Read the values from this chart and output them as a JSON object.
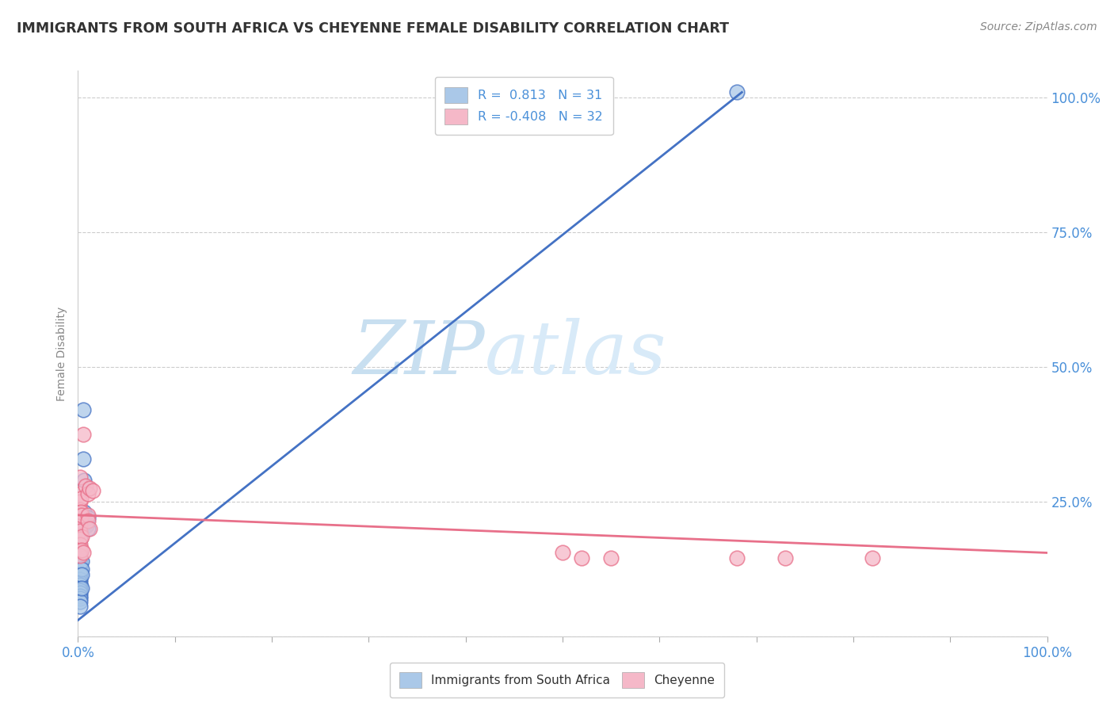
{
  "title": "IMMIGRANTS FROM SOUTH AFRICA VS CHEYENNE FEMALE DISABILITY CORRELATION CHART",
  "source_text": "Source: ZipAtlas.com",
  "ylabel": "Female Disability",
  "ylabel_right_ticks": [
    "100.0%",
    "75.0%",
    "50.0%",
    "25.0%"
  ],
  "ylabel_right_vals": [
    1.0,
    0.75,
    0.5,
    0.25
  ],
  "watermark_zip": "ZIP",
  "watermark_atlas": "atlas",
  "legend_label_blue": "Immigrants from South Africa",
  "legend_label_pink": "Cheyenne",
  "R_blue": 0.813,
  "N_blue": 31,
  "R_pink": -0.408,
  "N_pink": 32,
  "blue_color": "#aac8e8",
  "pink_color": "#f5b8c8",
  "blue_line_color": "#4472c4",
  "pink_line_color": "#e8708a",
  "blue_scatter": [
    [
      0.002,
      0.18
    ],
    [
      0.002,
      0.155
    ],
    [
      0.002,
      0.145
    ],
    [
      0.002,
      0.135
    ],
    [
      0.002,
      0.125
    ],
    [
      0.002,
      0.115
    ],
    [
      0.002,
      0.105
    ],
    [
      0.002,
      0.1
    ],
    [
      0.002,
      0.095
    ],
    [
      0.002,
      0.09
    ],
    [
      0.002,
      0.085
    ],
    [
      0.002,
      0.08
    ],
    [
      0.002,
      0.075
    ],
    [
      0.002,
      0.07
    ],
    [
      0.002,
      0.065
    ],
    [
      0.002,
      0.055
    ],
    [
      0.004,
      0.14
    ],
    [
      0.004,
      0.125
    ],
    [
      0.004,
      0.115
    ],
    [
      0.004,
      0.09
    ],
    [
      0.005,
      0.42
    ],
    [
      0.005,
      0.33
    ],
    [
      0.006,
      0.29
    ],
    [
      0.006,
      0.23
    ],
    [
      0.007,
      0.205
    ],
    [
      0.007,
      0.22
    ],
    [
      0.008,
      0.21
    ],
    [
      0.009,
      0.205
    ],
    [
      0.01,
      0.22
    ],
    [
      0.01,
      0.2
    ],
    [
      0.68,
      1.01
    ]
  ],
  "pink_scatter": [
    [
      0.002,
      0.295
    ],
    [
      0.002,
      0.265
    ],
    [
      0.002,
      0.25
    ],
    [
      0.002,
      0.235
    ],
    [
      0.002,
      0.225
    ],
    [
      0.002,
      0.215
    ],
    [
      0.002,
      0.205
    ],
    [
      0.002,
      0.195
    ],
    [
      0.002,
      0.18
    ],
    [
      0.002,
      0.17
    ],
    [
      0.002,
      0.16
    ],
    [
      0.002,
      0.15
    ],
    [
      0.003,
      0.255
    ],
    [
      0.003,
      0.23
    ],
    [
      0.004,
      0.225
    ],
    [
      0.004,
      0.185
    ],
    [
      0.004,
      0.16
    ],
    [
      0.005,
      0.155
    ],
    [
      0.005,
      0.375
    ],
    [
      0.008,
      0.28
    ],
    [
      0.01,
      0.265
    ],
    [
      0.012,
      0.275
    ],
    [
      0.01,
      0.225
    ],
    [
      0.015,
      0.27
    ],
    [
      0.01,
      0.215
    ],
    [
      0.012,
      0.2
    ],
    [
      0.5,
      0.155
    ],
    [
      0.52,
      0.145
    ],
    [
      0.55,
      0.145
    ],
    [
      0.68,
      0.145
    ],
    [
      0.73,
      0.145
    ],
    [
      0.82,
      0.145
    ]
  ],
  "xlim": [
    0.0,
    1.0
  ],
  "ylim": [
    0.0,
    1.05
  ],
  "blue_line_x": [
    0.0,
    0.685
  ],
  "blue_line_y": [
    0.03,
    1.01
  ],
  "pink_line_x": [
    0.0,
    1.0
  ],
  "pink_line_y": [
    0.225,
    0.155
  ],
  "grid_color": "#cccccc",
  "bg_color": "#ffffff",
  "title_color": "#333333",
  "axis_label_color": "#4a90d9",
  "watermark_color_zip": "#c8dff0",
  "watermark_color_atlas": "#d8eaf8"
}
